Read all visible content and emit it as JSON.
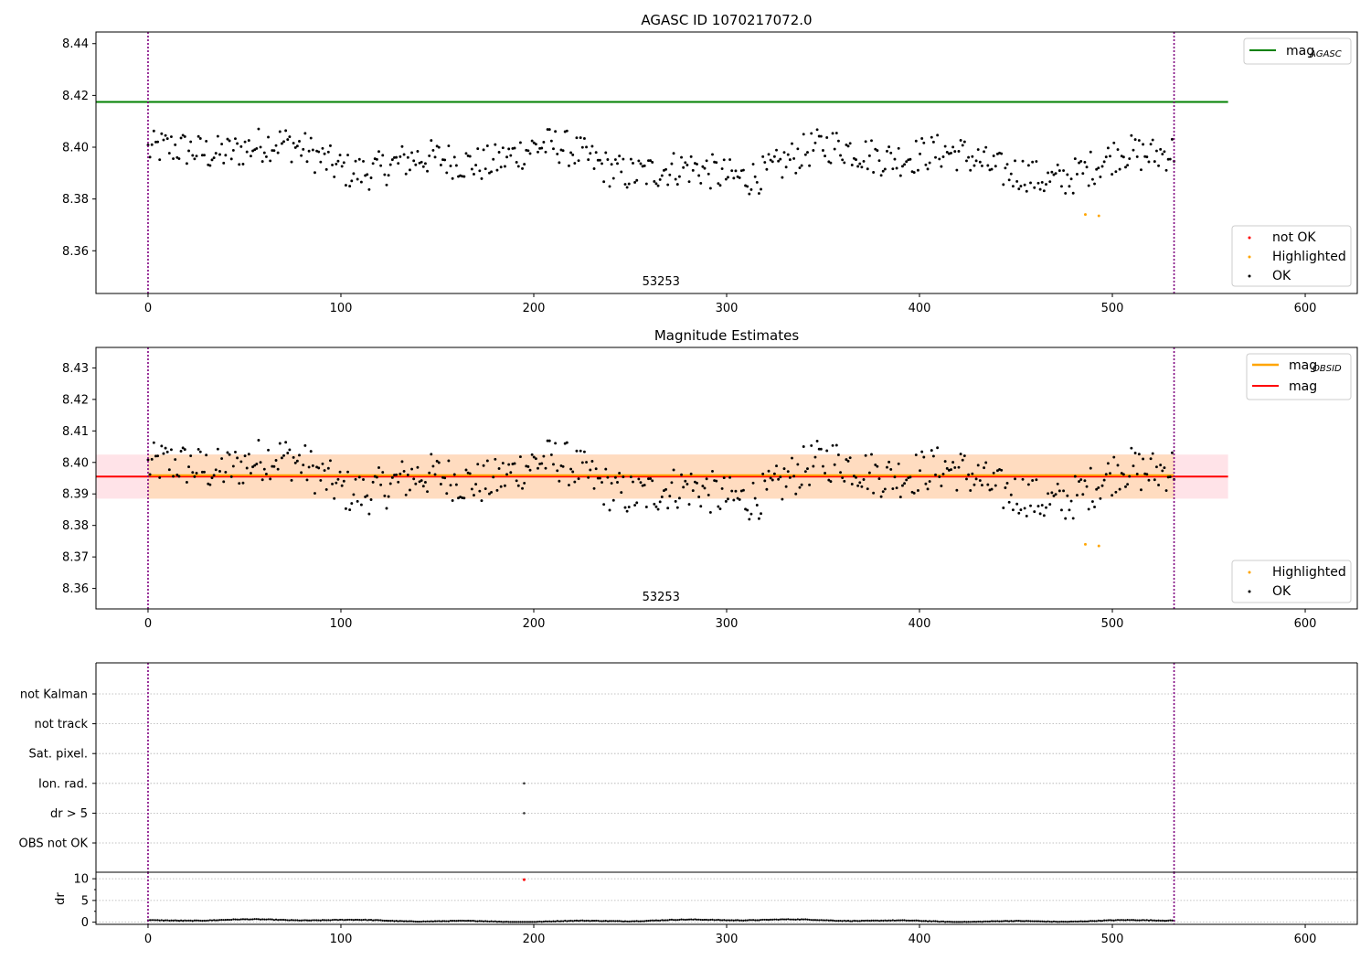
{
  "figure": {
    "title": "AGASC ID 1070217072.0",
    "mid_title": "Magnitude Estimates"
  },
  "colors": {
    "agasc_line": "#008000",
    "mag_line": "#ff0000",
    "obsid_line": "#ffa500",
    "highlighted": "#ffa500",
    "not_ok": "#ff0000",
    "ok": "#000000",
    "boundary": "#800080",
    "band_outer": "#ffc0cb",
    "band_inner": "#ffdab9",
    "grid": "#b0b0b0"
  },
  "chart_data": [
    {
      "type": "scatter",
      "title": "AGASC ID 1070217072.0",
      "x_range": [
        -27,
        627
      ],
      "ylim": [
        8.3435,
        8.4445
      ],
      "xticks": [
        "0",
        "100",
        "200",
        "300",
        "400",
        "500",
        "600"
      ],
      "yticks": [
        "8.36",
        "8.38",
        "8.40",
        "8.42",
        "8.44"
      ],
      "obsid_label": "53253",
      "obsid_boundaries": [
        0,
        532
      ],
      "reference_line": {
        "name": "mag",
        "subscript": "AGASC",
        "y": 8.4175,
        "x": [
          -27,
          560
        ]
      },
      "point_legend": {
        "not_ok": "not OK",
        "highlighted": "Highlighted",
        "ok": "OK"
      },
      "highlighted_points": [
        [
          486,
          8.374
        ],
        [
          493,
          8.3735
        ]
      ],
      "ok_series": {
        "n": 530,
        "x_start": 0,
        "x_end": 532,
        "y_range": [
          8.377,
          8.413
        ],
        "mean": 8.395
      },
      "grid": false,
      "legend_location": [
        "upper right",
        "lower right"
      ]
    },
    {
      "type": "scatter",
      "title": "Magnitude Estimates",
      "x_range": [
        -27,
        627
      ],
      "ylim": [
        8.3535,
        8.4365
      ],
      "xticks": [
        "0",
        "100",
        "200",
        "300",
        "400",
        "500",
        "600"
      ],
      "yticks": [
        "8.36",
        "8.37",
        "8.38",
        "8.39",
        "8.40",
        "8.41",
        "8.42",
        "8.43"
      ],
      "obsid_label": "53253",
      "obsid_boundaries": [
        0,
        532
      ],
      "series": [
        {
          "name": "mag",
          "subscript": "OBSID",
          "y": 8.3955,
          "band": [
            8.3885,
            8.4025
          ],
          "x": [
            0,
            532
          ]
        },
        {
          "name": "mag",
          "y": 8.3955,
          "band": [
            8.3885,
            8.4025
          ],
          "x": [
            -27,
            560
          ]
        }
      ],
      "point_legend": {
        "highlighted": "Highlighted",
        "ok": "OK"
      },
      "highlighted_points": [
        [
          486,
          8.374
        ],
        [
          493,
          8.3735
        ]
      ],
      "grid": false,
      "legend_location": [
        "upper right",
        "lower right"
      ]
    },
    {
      "type": "scatter",
      "x_range": [
        -27,
        627
      ],
      "categories": [
        "not Kalman",
        "not track",
        "Sat. pixel.",
        "Ion. rad.",
        "dr > 5",
        "OBS not OK"
      ],
      "flag_points": [
        {
          "category": "Ion. rad.",
          "x": 195
        },
        {
          "category": "dr > 5",
          "x": 195
        }
      ],
      "obsid_boundaries": [
        0,
        532
      ],
      "grid": true
    },
    {
      "type": "scatter",
      "ylabel": "dr",
      "x_range": [
        -27,
        627
      ],
      "ylim": [
        -0.5,
        11.5
      ],
      "xticks": [
        "0",
        "100",
        "200",
        "300",
        "400",
        "500",
        "600"
      ],
      "yticks": [
        "0",
        "5",
        "10"
      ],
      "dr_series": {
        "n": 530,
        "x_start": 0,
        "x_end": 532,
        "y_range": [
          0.1,
          0.8
        ]
      },
      "not_ok_points": [
        [
          195,
          9.8
        ]
      ],
      "obsid_boundaries": [
        0,
        532
      ],
      "grid": true
    }
  ]
}
